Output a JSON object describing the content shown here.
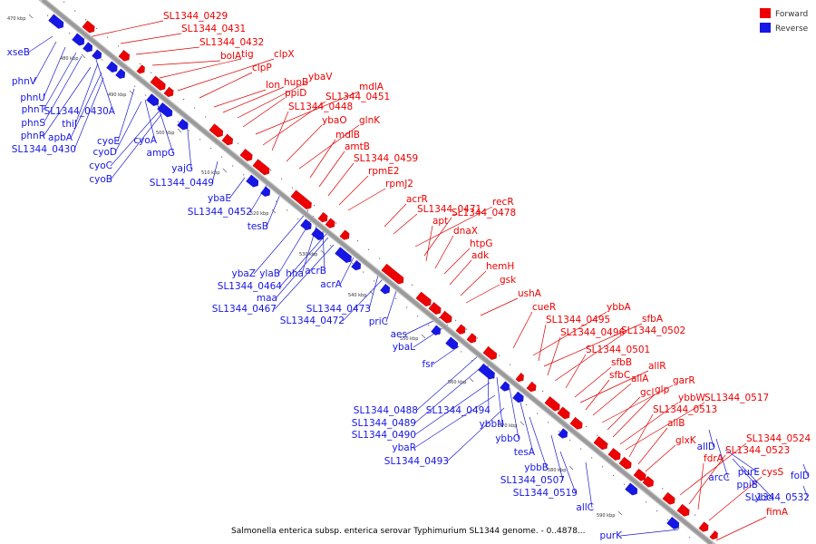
{
  "caption": "Salmonella enterica subsp. enterica serovar Typhimurium SL1344 genome. - 0..4878...",
  "legend": {
    "forward": "Forward",
    "reverse": "Reverse"
  },
  "colors": {
    "forward": "#ee0000",
    "reverse": "#1616e6",
    "forward_line": "#dd0000",
    "reverse_line": "#1a1ad0",
    "backbone": "#999999"
  },
  "axis_ticks": [
    "470 kbp",
    "480 kbp",
    "490 kbp",
    "500 kbp",
    "510 kbp",
    "520 kbp",
    "530 kbp",
    "540 kbp",
    "550 kbp",
    "560 kbp",
    "570 kbp",
    "580 kbp",
    "590 kbp"
  ],
  "forward_genes": [
    "SL1344_0429",
    "SL1344_0431",
    "SL1344_0432",
    "bolA",
    "tig",
    "clpX",
    "clpP",
    "lon",
    "hupB",
    "ybaV",
    "ppiD",
    "mdlA",
    "SL1344_0451",
    "SL1344_0448",
    "ybaO",
    "glnK",
    "mdlB",
    "amtB",
    "SL1344_0459",
    "rpmE2",
    "rpmJ2",
    "acrR",
    "SL1344_0471",
    "recR",
    "SL1344_0478",
    "apt",
    "dnaX",
    "htpG",
    "adk",
    "hemH",
    "gsk",
    "ushA",
    "cueR",
    "ybbA",
    "SL1344_0495",
    "sfbA",
    "SL1344_0496",
    "SL1344_0502",
    "SL1344_0501",
    "sfbB",
    "allR",
    "sfbC",
    "allA",
    "garR",
    "gcl",
    "glp",
    "ybbW",
    "SL1344_0517",
    "SL1344_0513",
    "allB",
    "glxK",
    "SL1344_0524",
    "SL1344_0523",
    "fdrA",
    "cysS",
    "fimA"
  ],
  "reverse_genes": [
    "xseB",
    "phnV",
    "phnU",
    "phnT",
    "phnS",
    "SL1344_0430A",
    "thiJ",
    "phnR",
    "apbA",
    "SL1344_0430",
    "cyoE",
    "cyoA",
    "cyoD",
    "ampG",
    "cyoC",
    "cyoB",
    "yajG",
    "SL1344_0449",
    "ybaE",
    "SL1344_0452",
    "tesB",
    "ybaZ",
    "ylaB",
    "hha",
    "acrB",
    "SL1344_0464",
    "maa",
    "SL1344_0467",
    "acrA",
    "SL1344_0473",
    "SL1344_0472",
    "priC",
    "aes",
    "ybaL",
    "fsr",
    "SL1344_0488",
    "SL1344_0494",
    "SL1344_0489",
    "ybbN",
    "SL1344_0490",
    "ybbO",
    "ybaR",
    "tesA",
    "SL1344_0493",
    "ybbB",
    "SL1344_0507",
    "SL1344_0519",
    "allC",
    "allD",
    "arcC",
    "purE",
    "ppiB",
    "ybcI",
    "folD",
    "SL1344_0532",
    "purK"
  ]
}
